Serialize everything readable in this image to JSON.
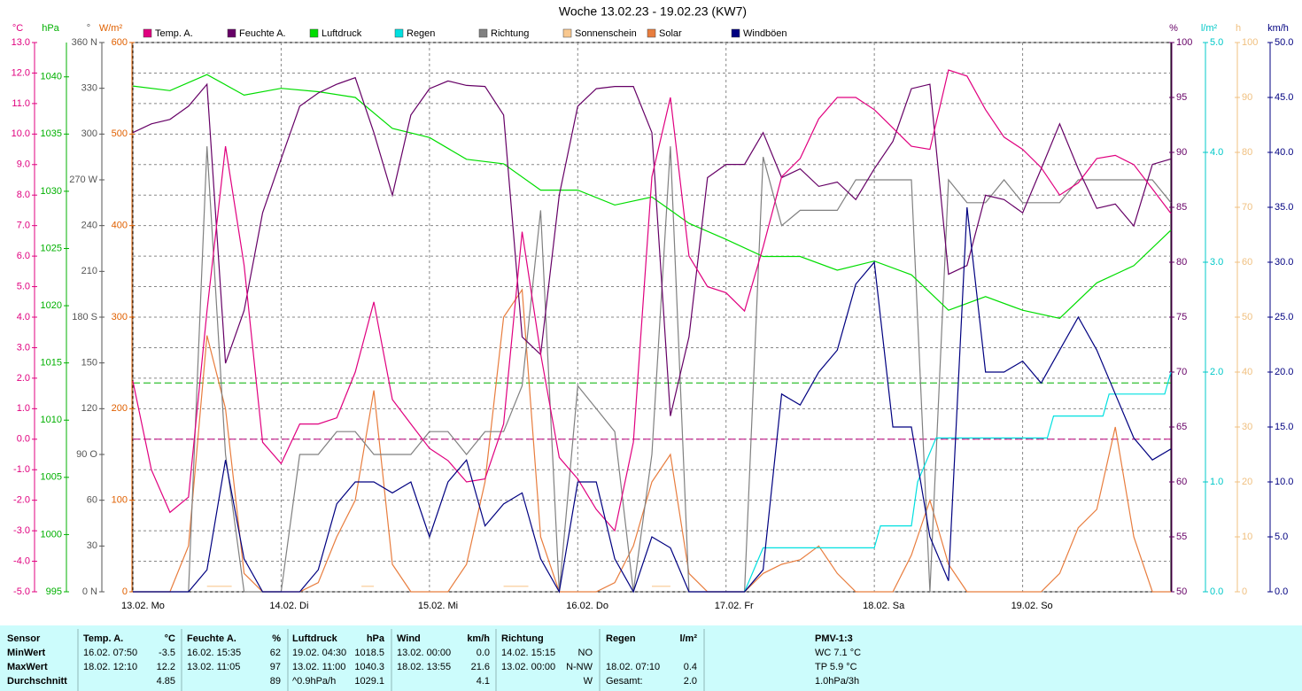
{
  "chart_data": {
    "type": "line",
    "title": "Woche 13.02.23 - 19.02.23 (KW7)",
    "xlim": [
      0,
      168
    ],
    "xticks": [
      {
        "value": 0,
        "label": "13.02. Mo"
      },
      {
        "value": 24,
        "label": "14.02. Di"
      },
      {
        "value": 48,
        "label": "15.02. Mi"
      },
      {
        "value": 72,
        "label": "16.02. Do"
      },
      {
        "value": 96,
        "label": "17.02. Fr"
      },
      {
        "value": 120,
        "label": "18.02. Sa"
      },
      {
        "value": 144,
        "label": "19.02. So"
      }
    ],
    "grid": true,
    "axes": [
      {
        "title": "°C",
        "color": "#e0007f",
        "side": "left",
        "ylim": [
          -5,
          13
        ],
        "yticks": [
          {
            "value": -5,
            "label": "-5.0"
          },
          {
            "value": -4,
            "label": "-4.0"
          },
          {
            "value": -3,
            "label": "-3.0"
          },
          {
            "value": -2,
            "label": "-2.0"
          },
          {
            "value": -1,
            "label": "-1.0"
          },
          {
            "value": 0,
            "label": "0.0"
          },
          {
            "value": 1,
            "label": "1.0"
          },
          {
            "value": 2,
            "label": "2.0"
          },
          {
            "value": 3,
            "label": "3.0"
          },
          {
            "value": 4,
            "label": "4.0"
          },
          {
            "value": 5,
            "label": "5.0"
          },
          {
            "value": 6,
            "label": "6.0"
          },
          {
            "value": 7,
            "label": "7.0"
          },
          {
            "value": 8,
            "label": "8.0"
          },
          {
            "value": 9,
            "label": "9.0"
          },
          {
            "value": 10,
            "label": "10.0"
          },
          {
            "value": 11,
            "label": "11.0"
          },
          {
            "value": 12,
            "label": "12.0"
          },
          {
            "value": 13,
            "label": "13.0"
          }
        ]
      },
      {
        "title": "hPa",
        "color": "#00b000",
        "side": "left",
        "ylim": [
          995,
          1043
        ],
        "yticks": [
          995,
          1000,
          1005,
          1010,
          1015,
          1020,
          1025,
          1030,
          1035,
          1040
        ]
      },
      {
        "title": "°",
        "color": "#555555",
        "side": "left",
        "ylim": [
          0,
          360
        ],
        "yticks": [
          {
            "value": 0,
            "label": "0 N"
          },
          30,
          60,
          {
            "value": 90,
            "label": "90 O"
          },
          120,
          150,
          {
            "value": 180,
            "label": "180 S"
          },
          210,
          240,
          {
            "value": 270,
            "label": "270 W"
          },
          300,
          330,
          {
            "value": 360,
            "label": "360 N"
          }
        ]
      },
      {
        "title": "W/m²",
        "color": "#e06000",
        "side": "left",
        "ylim": [
          0,
          600
        ],
        "yticks": [
          0,
          100,
          200,
          300,
          400,
          500,
          600
        ]
      },
      {
        "title": "%",
        "color": "#660066",
        "side": "right",
        "ylim": [
          50,
          100
        ],
        "yticks": [
          50,
          55,
          60,
          65,
          70,
          75,
          80,
          85,
          90,
          95,
          100
        ]
      },
      {
        "title": "l/m²",
        "color": "#00c8c8",
        "side": "right",
        "ylim": [
          0,
          5
        ],
        "yticks": [
          {
            "value": 0,
            "label": "0.0"
          },
          {
            "value": 1,
            "label": "1.0"
          },
          {
            "value": 2,
            "label": "2.0"
          },
          {
            "value": 3,
            "label": "3.0"
          },
          {
            "value": 4,
            "label": "4.0"
          },
          {
            "value": 5,
            "label": "5.0"
          }
        ]
      },
      {
        "title": "h",
        "color": "#f0c080",
        "side": "right",
        "ylim": [
          0,
          100
        ],
        "yticks": [
          0,
          10,
          20,
          30,
          40,
          50,
          60,
          70,
          80,
          90,
          100
        ]
      },
      {
        "title": "km/h",
        "color": "#000080",
        "side": "right",
        "ylim": [
          0,
          50
        ],
        "yticks": [
          {
            "value": 0,
            "label": "0.0"
          },
          {
            "value": 5,
            "label": "5.0"
          },
          {
            "value": 10,
            "label": "10.0"
          },
          {
            "value": 15,
            "label": "15.0"
          },
          {
            "value": 20,
            "label": "20.0"
          },
          {
            "value": 25,
            "label": "25.0"
          },
          {
            "value": 30,
            "label": "30.0"
          },
          {
            "value": 35,
            "label": "35.0"
          },
          {
            "value": 40,
            "label": "40.0"
          },
          {
            "value": 45,
            "label": "45.0"
          },
          {
            "value": 50,
            "label": "50.0"
          }
        ]
      }
    ],
    "reference_lines": [
      {
        "axis": 0,
        "value": 0,
        "color": "#c0007f"
      },
      {
        "axis": 1,
        "value": 1013.25,
        "color": "#00b000"
      }
    ],
    "x": [
      0,
      3,
      6,
      9,
      12,
      15,
      18,
      21,
      24,
      27,
      30,
      33,
      36,
      39,
      42,
      45,
      48,
      51,
      54,
      57,
      60,
      63,
      66,
      69,
      72,
      75,
      78,
      81,
      84,
      87,
      90,
      93,
      96,
      99,
      102,
      105,
      108,
      111,
      114,
      117,
      120,
      123,
      126,
      129,
      132,
      135,
      138,
      141,
      144,
      147,
      150,
      153,
      156,
      159,
      162,
      165,
      168
    ],
    "series": [
      {
        "name": "Temp. A.",
        "color": "#e0007f",
        "axis": 0,
        "values": [
          1.9,
          -1.0,
          -2.4,
          -1.9,
          4.2,
          9.6,
          5.7,
          -0.1,
          -0.8,
          0.5,
          0.5,
          0.7,
          2.2,
          4.5,
          1.3,
          0.5,
          -0.3,
          -0.7,
          -1.4,
          -1.3,
          0.5,
          6.8,
          2.8,
          -0.6,
          -1.3,
          -2.3,
          -3.0,
          -0.1,
          8.6,
          11.2,
          6.0,
          5.0,
          4.8,
          4.2,
          6.3,
          8.6,
          9.2,
          10.5,
          11.2,
          11.2,
          10.8,
          10.2,
          9.6,
          9.5,
          12.1,
          11.9,
          10.8,
          9.9,
          9.5,
          8.9,
          8.0,
          8.4,
          9.2,
          9.3,
          9.0,
          8.2,
          7.4
        ]
      },
      {
        "name": "Feuchte A.",
        "color": "#660066",
        "axis": 4,
        "values": [
          91.8,
          92.6,
          93.0,
          94.2,
          96.2,
          70.8,
          75.6,
          84.5,
          89.4,
          94.2,
          95.4,
          96.2,
          96.8,
          91.8,
          86.1,
          93.4,
          95.8,
          96.5,
          96.1,
          96.0,
          93.4,
          73.2,
          71.6,
          86.1,
          94.2,
          95.8,
          96.0,
          96.0,
          91.8,
          66.0,
          73.2,
          87.7,
          88.9,
          88.9,
          91.8,
          87.7,
          88.5,
          86.9,
          87.3,
          85.7,
          88.5,
          91.0,
          95.8,
          96.2,
          78.9,
          79.7,
          86.1,
          85.7,
          84.5,
          88.5,
          92.6,
          88.5,
          84.9,
          85.3,
          83.3,
          88.9,
          89.4
        ]
      },
      {
        "name": "Luftdruck",
        "color": "#00dd00",
        "axis": 1,
        "x": [
          0,
          6,
          12,
          18,
          24,
          30,
          36,
          42,
          48,
          54,
          60,
          66,
          72,
          78,
          84,
          90,
          96,
          102,
          108,
          114,
          120,
          126,
          132,
          138,
          144,
          150,
          156,
          162,
          168
        ],
        "values": [
          1039.2,
          1038.8,
          1040.2,
          1038.4,
          1039.0,
          1038.7,
          1038.2,
          1035.5,
          1034.7,
          1032.8,
          1032.4,
          1030.1,
          1030.1,
          1028.8,
          1029.5,
          1027.2,
          1025.8,
          1024.3,
          1024.3,
          1023.1,
          1023.9,
          1022.7,
          1019.6,
          1020.8,
          1019.6,
          1018.9,
          1022.0,
          1023.5,
          1026.6
        ]
      },
      {
        "name": "Regen",
        "color": "#00e0e0",
        "axis": 5,
        "x": [
          99,
          102,
          120,
          121,
          126,
          127,
          130,
          148,
          149,
          157,
          158,
          167,
          168
        ],
        "values": [
          0,
          0.4,
          0.4,
          0.6,
          0.6,
          1.0,
          1.4,
          1.4,
          1.6,
          1.6,
          1.8,
          1.8,
          2.0
        ]
      },
      {
        "name": "Richtung",
        "color": "#808080",
        "axis": 2,
        "values": [
          0,
          0,
          0,
          0,
          292,
          90,
          0,
          0,
          0,
          90,
          90,
          105,
          105,
          90,
          90,
          90,
          105,
          105,
          90,
          105,
          105,
          135,
          250,
          0,
          135,
          120,
          105,
          0,
          90,
          292,
          0,
          0,
          0,
          0,
          285,
          240,
          250,
          250,
          250,
          270,
          270,
          270,
          270,
          0,
          270,
          255,
          255,
          270,
          255,
          255,
          255,
          270,
          270,
          270,
          270,
          270,
          255
        ]
      },
      {
        "name": "Sonnenschein",
        "color": "#f8c890",
        "axis": 6,
        "x": [
          12,
          13,
          14,
          15,
          16,
          17,
          37,
          38,
          39,
          40,
          60,
          61,
          62,
          63,
          64,
          65,
          84,
          85,
          86,
          87
        ],
        "values": [
          1,
          1,
          1,
          1,
          1,
          null,
          1,
          1,
          1,
          null,
          1,
          1,
          1,
          1,
          1,
          null,
          1,
          1,
          1,
          1
        ]
      },
      {
        "name": "Solar",
        "color": "#e87d3e",
        "axis": 3,
        "values": [
          0,
          0,
          0,
          50,
          280,
          200,
          20,
          0,
          0,
          0,
          10,
          60,
          100,
          220,
          30,
          0,
          0,
          0,
          30,
          120,
          300,
          330,
          60,
          0,
          0,
          0,
          10,
          50,
          120,
          150,
          20,
          0,
          0,
          0,
          20,
          30,
          35,
          50,
          20,
          0,
          0,
          0,
          40,
          100,
          30,
          0,
          0,
          0,
          0,
          0,
          20,
          70,
          90,
          180,
          60,
          0,
          0
        ]
      },
      {
        "name": "Windböen",
        "color": "#000080",
        "axis": 7,
        "values": [
          0,
          0,
          0,
          0,
          2,
          12,
          3,
          0,
          0,
          0,
          2,
          8,
          10,
          10,
          9,
          10,
          5,
          10,
          12,
          6,
          8,
          9,
          3,
          0,
          10,
          10,
          3,
          0,
          5,
          4,
          0,
          0,
          0,
          0,
          2,
          18,
          17,
          20,
          22,
          28,
          30,
          15,
          15,
          5,
          1,
          35,
          20,
          20,
          21,
          19,
          22,
          25,
          22,
          18,
          14,
          12,
          13
        ]
      }
    ],
    "draw_order": [
      6,
      5,
      4,
      3,
      2,
      1,
      0,
      7
    ]
  },
  "table": {
    "header": [
      {
        "name": "Sensor"
      },
      {
        "name": "Temp. A.",
        "unit": "°C"
      },
      {
        "name": "Feuchte A.",
        "unit": "%"
      },
      {
        "name": "Luftdruck",
        "unit": "hPa"
      },
      {
        "name": "Wind",
        "unit": "km/h"
      },
      {
        "name": "Richtung"
      },
      {
        "name": "Regen",
        "unit": "l/m²"
      },
      {
        "name": "PMV-1:3"
      }
    ],
    "rows": [
      {
        "label": "MinWert",
        "cells": [
          {
            "time": "16.02.  07:50",
            "value": "-3.5"
          },
          {
            "time": "16.02.  15:35",
            "value": "62"
          },
          {
            "time": "19.02.  04:30",
            "value": "1018.5"
          },
          {
            "time": "13.02.  00:00",
            "value": "0.0"
          },
          {
            "time": "14.02.  15:15",
            "value": "NO"
          },
          {},
          {
            "value": "WC 7.1 °C"
          }
        ]
      },
      {
        "label": "MaxWert",
        "cells": [
          {
            "time": "18.02.  12:10",
            "value": "12.2"
          },
          {
            "time": "13.02.  11:05",
            "value": "97"
          },
          {
            "time": "13.02.  11:00",
            "value": "1040.3"
          },
          {
            "time": "18.02.  13:55",
            "value": "21.6"
          },
          {
            "time": "13.02.  00:00",
            "value": "N-NW"
          },
          {
            "time": "18.02.  07:10",
            "value": "0.4"
          },
          {
            "value": "TP 5.9 °C"
          }
        ]
      },
      {
        "label": "Durchschnitt",
        "cells": [
          {
            "value": "4.85"
          },
          {
            "value": "89"
          },
          {
            "time": "^0.9hPa/h",
            "value": "1029.1"
          },
          {
            "value": "4.1"
          },
          {
            "value": "W"
          },
          {
            "time": "Gesamt:",
            "value": "2.0"
          },
          {
            "value": "1.0hPa/3h"
          }
        ]
      }
    ]
  }
}
